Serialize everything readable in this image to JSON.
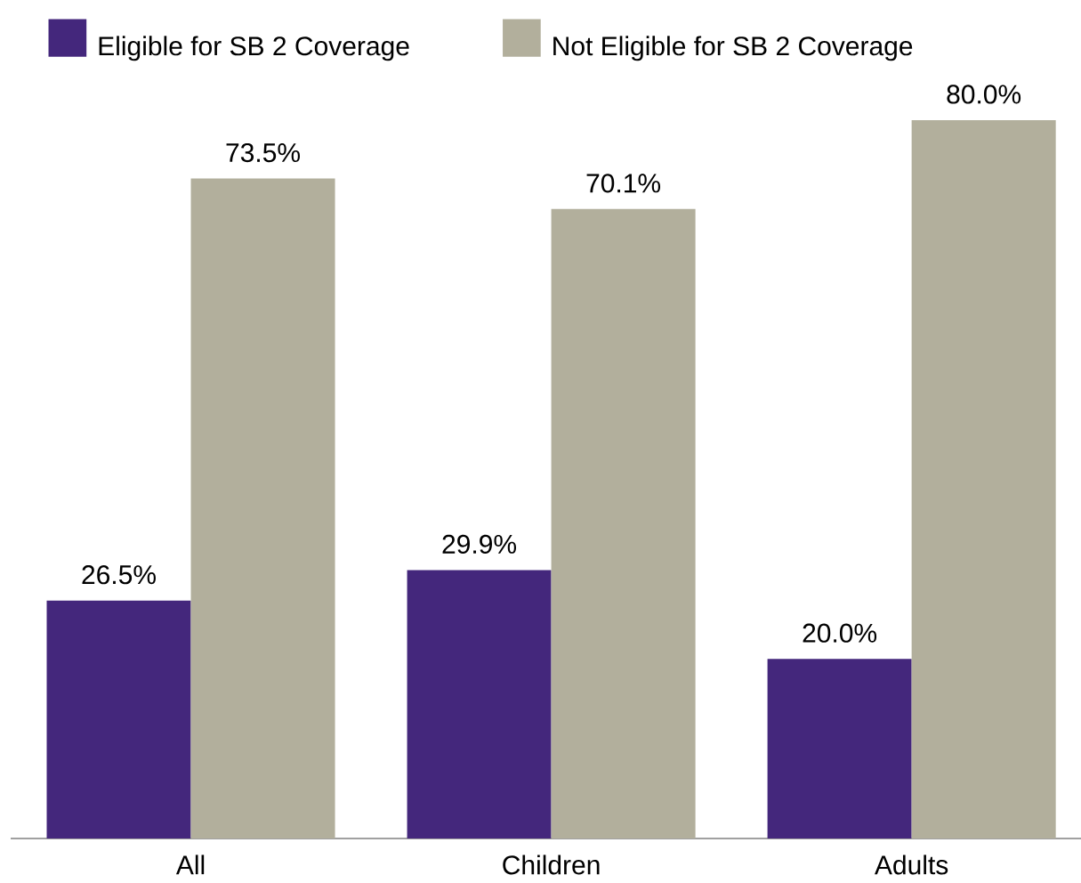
{
  "chart_data": {
    "type": "bar",
    "categories": [
      "All",
      "Children",
      "Adults"
    ],
    "series": [
      {
        "name": "Eligible for SB 2 Coverage",
        "color": "#44277c",
        "values": [
          26.5,
          29.9,
          20.0
        ],
        "value_labels": [
          "26.5%",
          "29.9%",
          "20.0%"
        ]
      },
      {
        "name": "Not Eligible for SB 2 Coverage",
        "color": "#b2af9c",
        "values": [
          73.5,
          70.1,
          80.0
        ],
        "value_labels": [
          "73.5%",
          "70.1%",
          "80.0%"
        ]
      }
    ],
    "legend": "top left",
    "grid": false
  }
}
